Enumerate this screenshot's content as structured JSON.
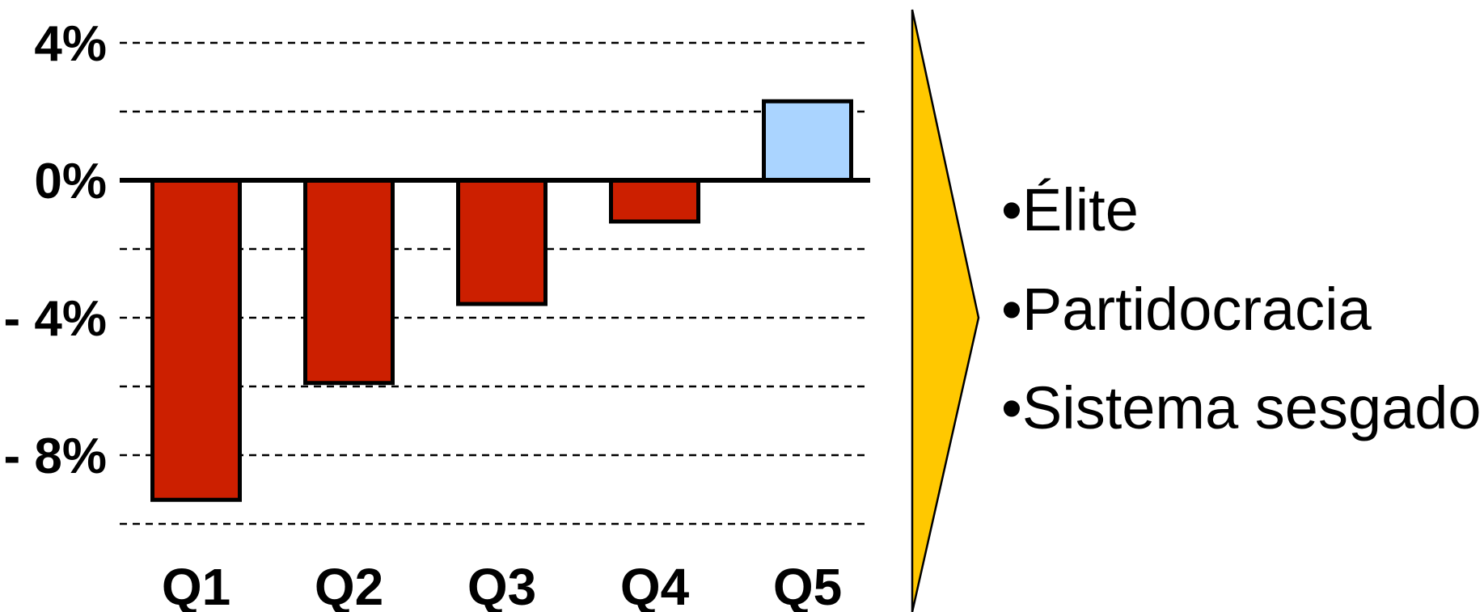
{
  "chart_data": {
    "type": "bar",
    "categories": [
      "Q1",
      "Q2",
      "Q3",
      "Q4",
      "Q5"
    ],
    "values": [
      -9.3,
      -5.9,
      -3.6,
      -1.2,
      2.3
    ],
    "y_ticks": [
      {
        "value": 4,
        "label": "4%"
      },
      {
        "value": 0,
        "label": "0%"
      },
      {
        "value": -4,
        "label": "- 4%"
      },
      {
        "value": -8,
        "label": "- 8%"
      }
    ],
    "gridlines": [
      4,
      2,
      -2,
      -4,
      -6,
      -8,
      -10
    ],
    "ylim": [
      -10,
      4
    ],
    "title": "",
    "xlabel": "",
    "ylabel": "",
    "grid": true,
    "colors": {
      "negative": "#cc1f00",
      "positive": "#aad4ff",
      "outline": "#000000"
    }
  },
  "arrow": {
    "color": "#ffc800",
    "outline": "#000000"
  },
  "bullets": {
    "symbol": "•",
    "items": [
      "Élite",
      "Partidocracia",
      "Sistema sesgado"
    ]
  }
}
